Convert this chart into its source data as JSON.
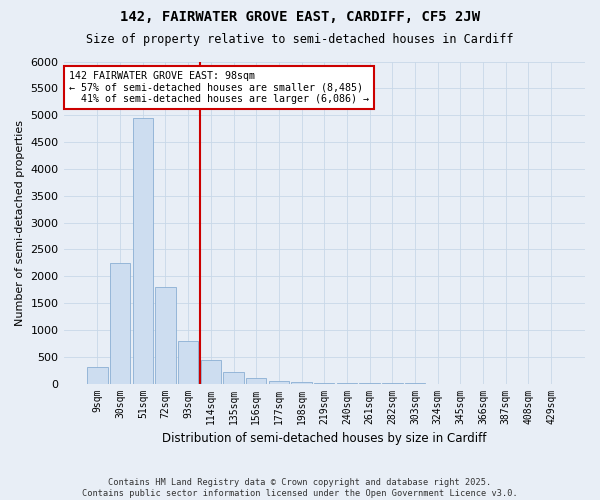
{
  "title": "142, FAIRWATER GROVE EAST, CARDIFF, CF5 2JW",
  "subtitle": "Size of property relative to semi-detached houses in Cardiff",
  "xlabel": "Distribution of semi-detached houses by size in Cardiff",
  "ylabel": "Number of semi-detached properties",
  "categories": [
    "9sqm",
    "30sqm",
    "51sqm",
    "72sqm",
    "93sqm",
    "114sqm",
    "135sqm",
    "156sqm",
    "177sqm",
    "198sqm",
    "219sqm",
    "240sqm",
    "261sqm",
    "282sqm",
    "303sqm",
    "324sqm",
    "345sqm",
    "366sqm",
    "387sqm",
    "408sqm",
    "429sqm"
  ],
  "values": [
    300,
    2250,
    4950,
    1800,
    800,
    430,
    220,
    100,
    50,
    30,
    15,
    8,
    5,
    3,
    2,
    1,
    1,
    0,
    0,
    0,
    0
  ],
  "bar_color": "#cdddf0",
  "bar_edge_color": "#8aafd4",
  "grid_color": "#c8d8e8",
  "background_color": "#e8eef6",
  "vline_color": "#cc0000",
  "vline_x_index": 4,
  "annotation_text": "142 FAIRWATER GROVE EAST: 98sqm\n← 57% of semi-detached houses are smaller (8,485)\n  41% of semi-detached houses are larger (6,086) →",
  "annotation_box_facecolor": "#ffffff",
  "annotation_box_edgecolor": "#cc0000",
  "footer": "Contains HM Land Registry data © Crown copyright and database right 2025.\nContains public sector information licensed under the Open Government Licence v3.0.",
  "ylim": [
    0,
    6000
  ],
  "yticks": [
    0,
    500,
    1000,
    1500,
    2000,
    2500,
    3000,
    3500,
    4000,
    4500,
    5000,
    5500,
    6000
  ]
}
